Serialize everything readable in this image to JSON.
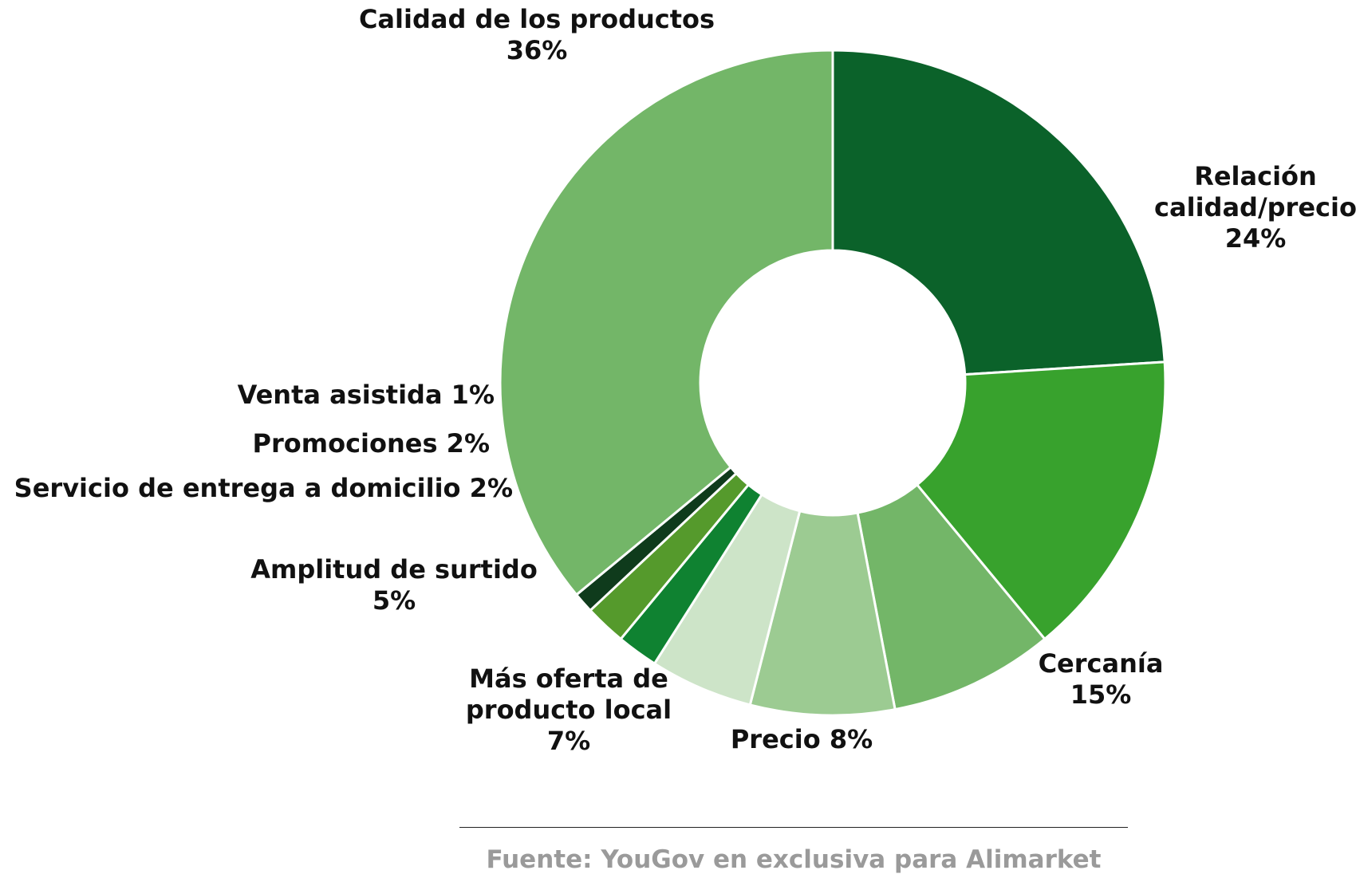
{
  "chart_data": {
    "type": "pie",
    "style": "donut",
    "start": "top",
    "direction": "clockwise",
    "slices": [
      {
        "label_lines": [
          "Relación",
          "calidad/precio"
        ],
        "pct": "24%",
        "value": 24,
        "color": "#0b622a"
      },
      {
        "label_lines": [
          "Cercanía"
        ],
        "pct": "15%",
        "value": 15,
        "color": "#38a22d"
      },
      {
        "label_lines": [
          "Precio 8%"
        ],
        "pct": "",
        "value": 8,
        "color": "#73b668"
      },
      {
        "label_lines": [
          "Más oferta de",
          "producto local"
        ],
        "pct": "7%",
        "value": 7,
        "color": "#9ccb92"
      },
      {
        "label_lines": [
          "Amplitud de surtido"
        ],
        "pct": "5%",
        "value": 5,
        "color": "#cde4c8"
      },
      {
        "label_lines": [
          "Servicio de entrega a domicilio 2%"
        ],
        "pct": "",
        "value": 2,
        "color": "#0f8231"
      },
      {
        "label_lines": [
          "Promociones 2%"
        ],
        "pct": "",
        "value": 2,
        "color": "#559a2c"
      },
      {
        "label_lines": [
          "Venta asistida 1%"
        ],
        "pct": "",
        "value": 1,
        "color": "#0f3b1c"
      },
      {
        "label_lines": [
          "Calidad de los productos"
        ],
        "pct": "36%",
        "value": 36,
        "color": "#73b668"
      }
    ]
  },
  "source": "Fuente: YouGov en exclusiva para Alimarket"
}
